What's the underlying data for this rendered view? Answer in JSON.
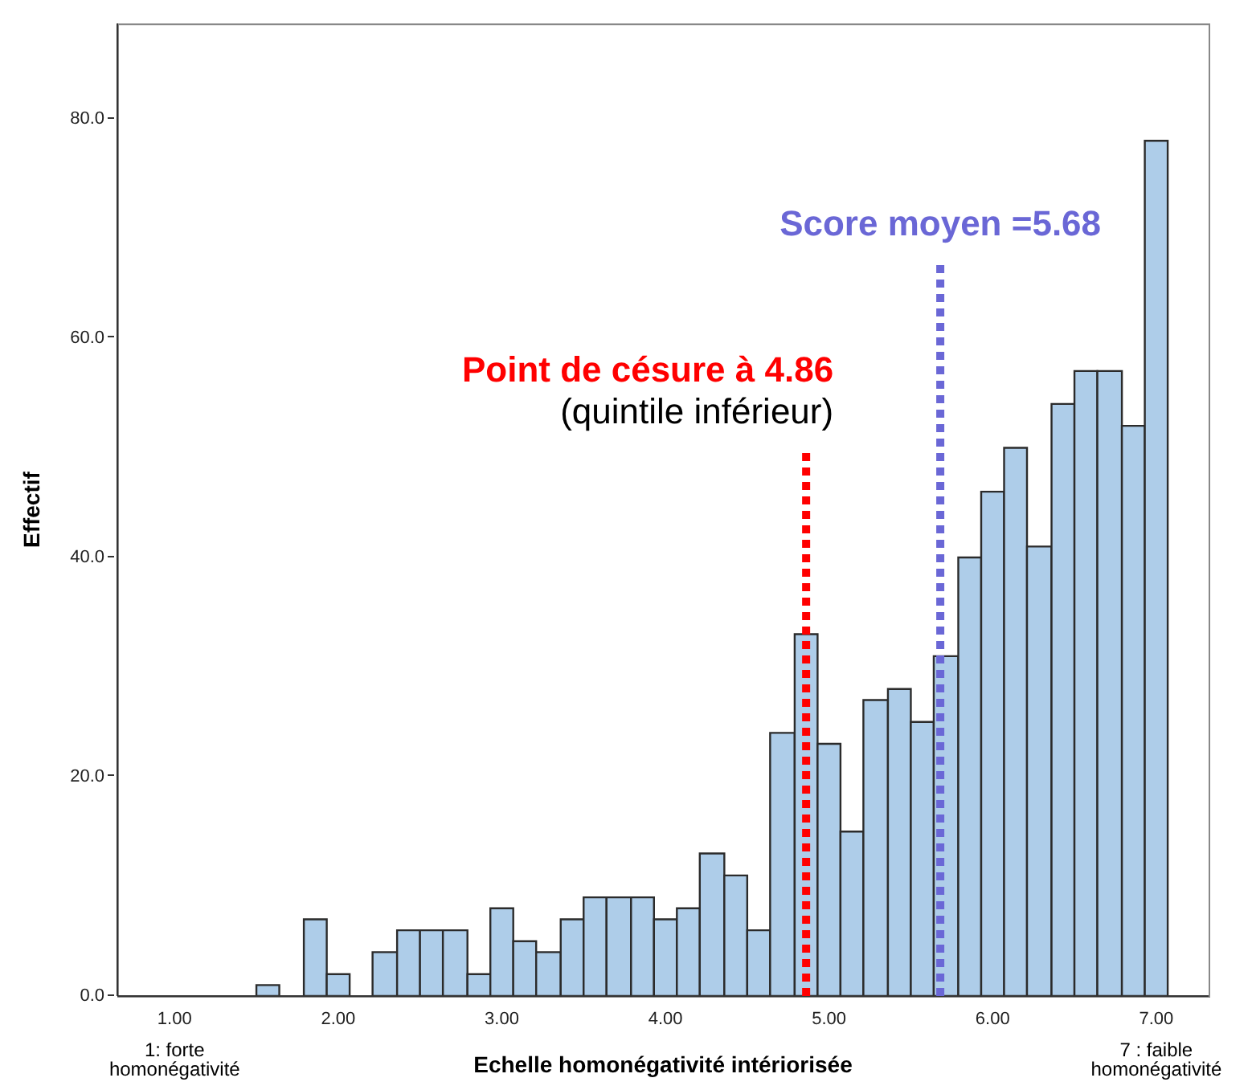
{
  "chart_data": {
    "type": "histogram",
    "xlabel": "Echelle homonégativité intériorisée",
    "ylabel": "Effectif",
    "bins": [
      1.5,
      1.64,
      1.79,
      1.93,
      2.07,
      2.21,
      2.36,
      2.5,
      2.64,
      2.79,
      2.93,
      3.07,
      3.21,
      3.36,
      3.5,
      3.64,
      3.79,
      3.93,
      4.07,
      4.21,
      4.36,
      4.5,
      4.64,
      4.79,
      4.93,
      5.07,
      5.21,
      5.36,
      5.5,
      5.64,
      5.79,
      5.93,
      6.07,
      6.21,
      6.36,
      6.5,
      6.64,
      6.79,
      6.93,
      7.07
    ],
    "values": [
      1,
      0,
      7,
      2,
      0,
      4,
      6,
      6,
      6,
      2,
      8,
      5,
      4,
      7,
      9,
      9,
      9,
      7,
      8,
      13,
      11,
      6,
      24,
      33,
      23,
      15,
      27,
      28,
      25,
      31,
      40,
      46,
      50,
      41,
      54,
      57,
      57,
      52,
      78
    ],
    "color": "#aecde9",
    "xlim": [
      0.65,
      7.32
    ],
    "xticks": [
      {
        "value": 1,
        "label": "1.00"
      },
      {
        "value": 2,
        "label": "2.00"
      },
      {
        "value": 3,
        "label": "3.00"
      },
      {
        "value": 4,
        "label": "4.00"
      },
      {
        "value": 5,
        "label": "5.00"
      },
      {
        "value": 6,
        "label": "6.00"
      },
      {
        "value": 7,
        "label": "7.00"
      }
    ],
    "ylim": [
      0,
      88.7
    ],
    "yticks": [
      {
        "value": 0,
        "label": "0.0"
      },
      {
        "value": 20,
        "label": "20.0"
      },
      {
        "value": 40,
        "label": "40.0"
      },
      {
        "value": 60,
        "label": "60.0"
      },
      {
        "value": 80,
        "label": "80.0"
      }
    ],
    "ref_lines": [
      {
        "axis": "x",
        "value": 4.86,
        "label": "Point de césure à 4.86 (quintile inférieur)",
        "color": "#ff0000",
        "line_style": "dotted"
      },
      {
        "axis": "x",
        "value": 5.68,
        "label": "Score moyen =5.68",
        "color": "#6a67d6",
        "line_style": "dotted"
      }
    ],
    "annotations": [
      "1: forte homonégativité",
      "7 : faible homonégativité"
    ],
    "grid": false,
    "legend": false
  }
}
